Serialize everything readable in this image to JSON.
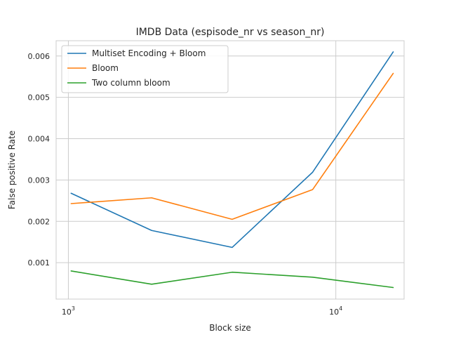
{
  "chart_data": {
    "type": "line",
    "title": "IMDB Data (espisode_nr vs season_nr)",
    "xlabel": "Block size",
    "ylabel": "False positive Rate",
    "xscale": "log",
    "x": [
      1024,
      2048,
      4096,
      8192,
      16384
    ],
    "xlim": [
      900,
      18000
    ],
    "ylim": [
      0.00012,
      0.00637
    ],
    "xticks": [
      {
        "value": 1000,
        "base": "10",
        "exp": "3"
      },
      {
        "value": 10000,
        "base": "10",
        "exp": "4"
      }
    ],
    "yticks": [
      "0.001",
      "0.002",
      "0.003",
      "0.004",
      "0.005",
      "0.006"
    ],
    "grid": true,
    "legend_position": "top-left",
    "series": [
      {
        "name": "Multiset Encoding + Bloom",
        "color": "#1f77b4",
        "values": [
          0.00268,
          0.00178,
          0.00137,
          0.00319,
          0.0061
        ]
      },
      {
        "name": "Bloom",
        "color": "#ff7f0e",
        "values": [
          0.00243,
          0.00257,
          0.00205,
          0.00277,
          0.00558
        ]
      },
      {
        "name": "Two column bloom",
        "color": "#2ca02c",
        "values": [
          0.0008,
          0.00048,
          0.00077,
          0.00065,
          0.0004
        ]
      }
    ]
  }
}
